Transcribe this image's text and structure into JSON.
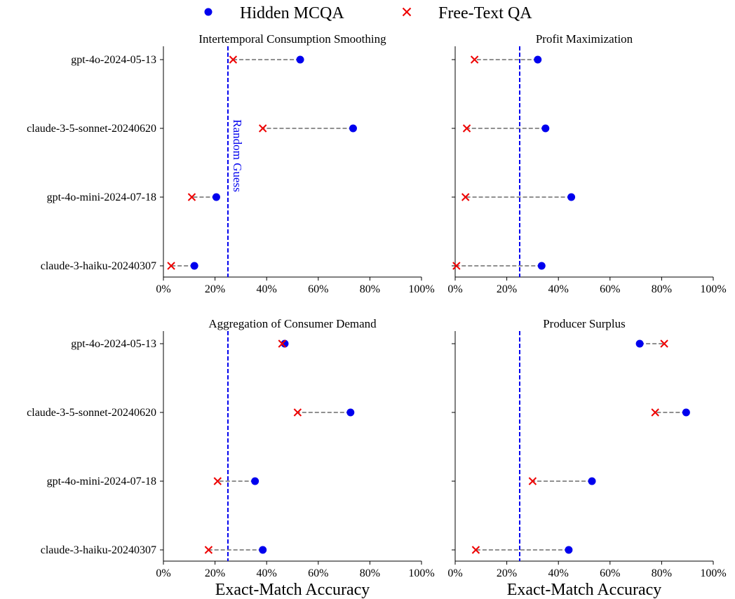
{
  "legend": {
    "position": "top-center",
    "items": [
      {
        "label": "Hidden MCQA",
        "marker": "circle",
        "color": "#0000ee"
      },
      {
        "label": "Free-Text QA",
        "marker": "x",
        "color": "#ee0000"
      }
    ]
  },
  "reference_line": {
    "value": 25,
    "label": "Random Guess",
    "color": "#0000ee",
    "style": "dashed"
  },
  "connector_color": "#808080",
  "chart_data": [
    {
      "type": "scatter",
      "title": "Intertemporal Consumption Smoothing",
      "xlabel": "",
      "xlim": [
        0,
        100
      ],
      "xticks": [
        "0%",
        "20%",
        "40%",
        "60%",
        "80%",
        "100%"
      ],
      "categories": [
        "gpt-4o-2024-05-13",
        "claude-3-5-sonnet-20240620",
        "gpt-4o-mini-2024-07-18",
        "claude-3-haiku-20240307"
      ],
      "series": [
        {
          "name": "Hidden MCQA",
          "values": [
            53,
            73.5,
            20.5,
            12
          ]
        },
        {
          "name": "Free-Text QA",
          "values": [
            27,
            38.5,
            11,
            3
          ]
        }
      ],
      "annotation": "Random Guess"
    },
    {
      "type": "scatter",
      "title": "Profit Maximization",
      "xlabel": "",
      "xlim": [
        0,
        100
      ],
      "xticks": [
        "0%",
        "20%",
        "40%",
        "60%",
        "80%",
        "100%"
      ],
      "categories": [
        "gpt-4o-2024-05-13",
        "claude-3-5-sonnet-20240620",
        "gpt-4o-mini-2024-07-18",
        "claude-3-haiku-20240307"
      ],
      "series": [
        {
          "name": "Hidden MCQA",
          "values": [
            32,
            35,
            45,
            33.5
          ]
        },
        {
          "name": "Free-Text QA",
          "values": [
            7.5,
            4.5,
            4,
            0.5
          ]
        }
      ]
    },
    {
      "type": "scatter",
      "title": "Aggregation of Consumer Demand",
      "xlabel": "Exact-Match Accuracy",
      "xlim": [
        0,
        100
      ],
      "xticks": [
        "0%",
        "20%",
        "40%",
        "60%",
        "80%",
        "100%"
      ],
      "categories": [
        "gpt-4o-2024-05-13",
        "claude-3-5-sonnet-20240620",
        "gpt-4o-mini-2024-07-18",
        "claude-3-haiku-20240307"
      ],
      "series": [
        {
          "name": "Hidden MCQA",
          "values": [
            47,
            72.5,
            35.5,
            38.5
          ]
        },
        {
          "name": "Free-Text QA",
          "values": [
            46,
            52,
            21,
            17.5
          ]
        }
      ]
    },
    {
      "type": "scatter",
      "title": "Producer Surplus",
      "xlabel": "Exact-Match Accuracy",
      "xlim": [
        0,
        100
      ],
      "xticks": [
        "0%",
        "20%",
        "40%",
        "60%",
        "80%",
        "100%"
      ],
      "categories": [
        "gpt-4o-2024-05-13",
        "claude-3-5-sonnet-20240620",
        "gpt-4o-mini-2024-07-18",
        "claude-3-haiku-20240307"
      ],
      "series": [
        {
          "name": "Hidden MCQA",
          "values": [
            71.5,
            89.5,
            53,
            44
          ]
        },
        {
          "name": "Free-Text QA",
          "values": [
            81,
            77.5,
            30,
            8
          ]
        }
      ]
    }
  ]
}
